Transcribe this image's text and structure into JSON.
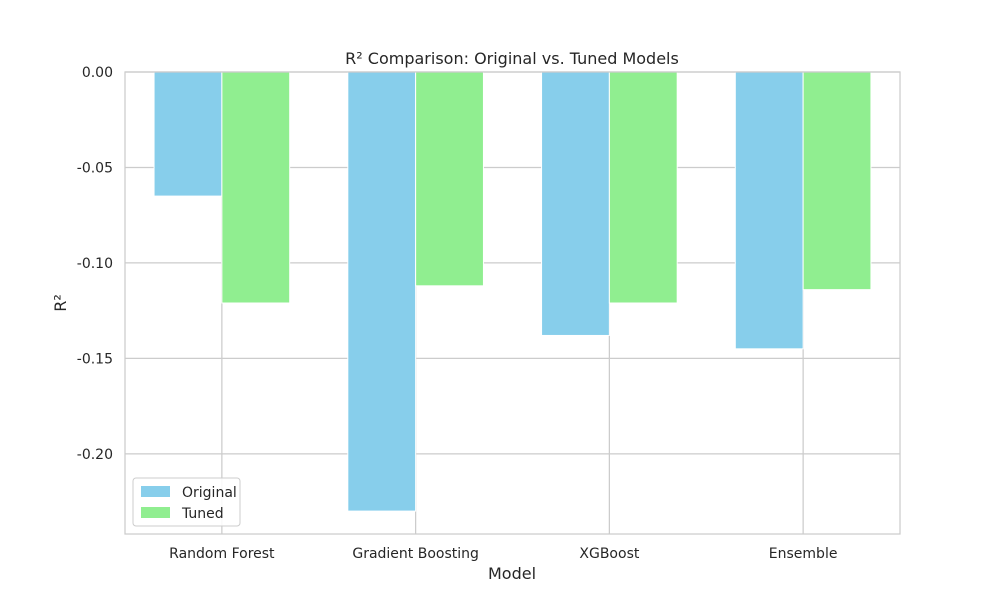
{
  "chart_data": {
    "type": "bar",
    "title": "R² Comparison: Original vs. Tuned Models",
    "xlabel": "Model",
    "ylabel": "R²",
    "categories": [
      "Random Forest",
      "Gradient Boosting",
      "XGBoost",
      "Ensemble"
    ],
    "series": [
      {
        "name": "Original",
        "color": "#87ceeb",
        "values": [
          -0.065,
          -0.23,
          -0.138,
          -0.145
        ]
      },
      {
        "name": "Tuned",
        "color": "#90ee90",
        "values": [
          -0.121,
          -0.112,
          -0.121,
          -0.114
        ]
      }
    ],
    "ylim": [
      -0.242,
      0.0
    ],
    "yticks": [
      0.0,
      -0.05,
      -0.1,
      -0.15,
      -0.2
    ],
    "ytick_labels": [
      "0.00",
      "-0.05",
      "-0.10",
      "-0.15",
      "-0.20"
    ],
    "grid": true,
    "legend_position": "lower-left"
  }
}
